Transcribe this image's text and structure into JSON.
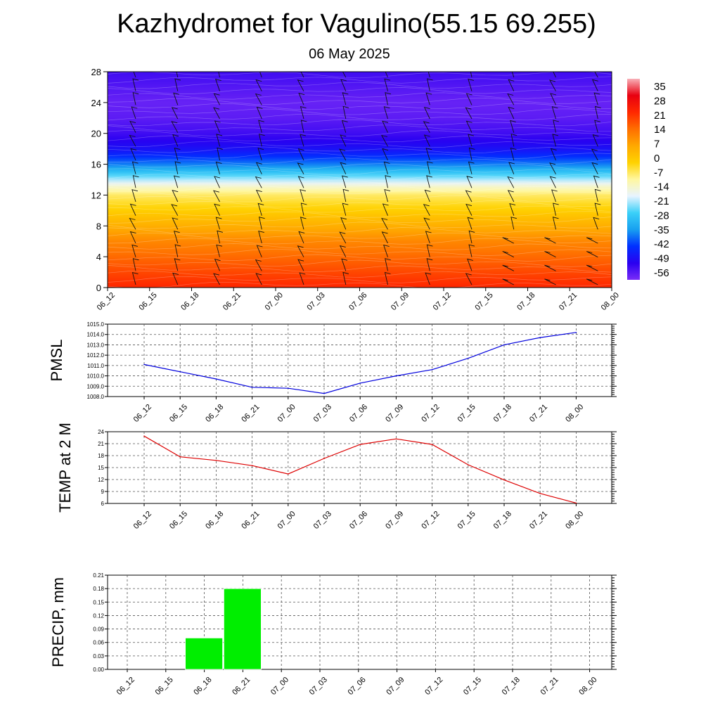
{
  "title": "Kazhydromet for Vagulino(55.15 69.255)",
  "subtitle": "06 May 2025",
  "chart_data": [
    {
      "type": "heatmap",
      "title": "",
      "ylabel": "",
      "ylim": [
        0,
        28
      ],
      "yticks": [
        "0",
        "4",
        "8",
        "12",
        "16",
        "20",
        "24",
        "28"
      ],
      "x": [
        "06_12",
        "06_15",
        "06_18",
        "06_21",
        "07_00",
        "07_03",
        "07_06",
        "07_09",
        "07_12",
        "07_15",
        "07_18",
        "07_21",
        "08_00"
      ],
      "colorbar": {
        "labels": [
          "35",
          "28",
          "21",
          "14",
          "7",
          "0",
          "-7",
          "-14",
          "-21",
          "-28",
          "-35",
          "-42",
          "-49",
          "-56"
        ],
        "range": [
          -60,
          38
        ]
      },
      "value_profile": [
        {
          "level": 0,
          "value": 22
        },
        {
          "level": 2,
          "value": 18
        },
        {
          "level": 4,
          "value": 14
        },
        {
          "level": 6,
          "value": 10
        },
        {
          "level": 8,
          "value": 4
        },
        {
          "level": 10,
          "value": -2
        },
        {
          "level": 12,
          "value": -8
        },
        {
          "level": 13,
          "value": -14
        },
        {
          "level": 14,
          "value": -22
        },
        {
          "level": 15,
          "value": -30
        },
        {
          "level": 16,
          "value": -38
        },
        {
          "level": 17,
          "value": -44
        },
        {
          "level": 18,
          "value": -49
        },
        {
          "level": 20,
          "value": -54
        },
        {
          "level": 22,
          "value": -57
        },
        {
          "level": 24,
          "value": -58
        },
        {
          "level": 26,
          "value": -56
        },
        {
          "level": 28,
          "value": -54
        }
      ],
      "colors": [
        "#7a2df7",
        "#2a00f0",
        "#0030ff",
        "#18a0f0",
        "#3ad0f8",
        "#e8f4ff",
        "#fff7a0",
        "#ffd200",
        "#ffa800",
        "#ff6e00",
        "#ff2800",
        "#e80010",
        "#f8b0b8"
      ]
    },
    {
      "type": "line",
      "ylabel": "PMSL",
      "ylim": [
        1008,
        1015
      ],
      "yticks": [
        "1008.0",
        "1009.0",
        "1010.0",
        "1011.0",
        "1012.0",
        "1013.0",
        "1014.0",
        "1015.0"
      ],
      "x": [
        "06_12",
        "06_15",
        "06_18",
        "06_21",
        "07_00",
        "07_03",
        "07_06",
        "07_09",
        "07_12",
        "07_15",
        "07_18",
        "07_21",
        "08_00"
      ],
      "series": [
        {
          "values": [
            1011.1,
            1010.4,
            1009.7,
            1008.9,
            1008.8,
            1008.3,
            1009.3,
            1010.0,
            1010.6,
            1011.7,
            1013.0,
            1013.7,
            1014.2
          ],
          "color": "#0000dd"
        }
      ]
    },
    {
      "type": "line",
      "ylabel": "TEMP at 2 M",
      "ylim": [
        6,
        24
      ],
      "yticks": [
        "6",
        "9",
        "12",
        "15",
        "18",
        "21",
        "24"
      ],
      "x": [
        "06_12",
        "06_15",
        "06_18",
        "06_21",
        "07_00",
        "07_03",
        "07_06",
        "07_09",
        "07_12",
        "07_15",
        "07_18",
        "07_21",
        "08_00"
      ],
      "series": [
        {
          "values": [
            22.9,
            17.7,
            16.8,
            15.5,
            13.4,
            17.3,
            20.8,
            22.2,
            20.8,
            15.7,
            11.9,
            8.5,
            6.1
          ],
          "color": "#dd0000"
        }
      ]
    },
    {
      "type": "bar",
      "ylabel": "PRECIP, mm",
      "ylim": [
        0,
        0.21
      ],
      "yticks": [
        "0.00",
        "0.03",
        "0.06",
        "0.09",
        "0.12",
        "0.15",
        "0.18",
        "0.21"
      ],
      "categories": [
        "06_12",
        "06_15",
        "06_18",
        "06_21",
        "07_00",
        "07_03",
        "07_06",
        "07_09",
        "07_12",
        "07_15",
        "07_18",
        "07_21",
        "08_00"
      ],
      "values": [
        0,
        0,
        0.07,
        0.18,
        0,
        0,
        0,
        0,
        0,
        0,
        0,
        0,
        0
      ],
      "color": "#00ee00"
    }
  ]
}
